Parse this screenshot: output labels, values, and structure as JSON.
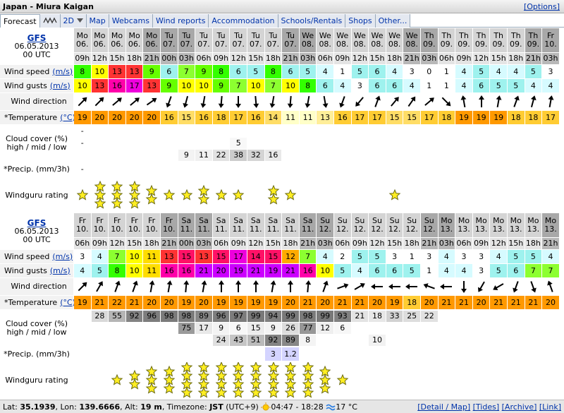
{
  "header": {
    "title": "Japan - Miura Kaigan",
    "options": "[Options]"
  },
  "tabs": [
    "Forecast",
    "2D",
    "Map",
    "Webcams",
    "Wind reports",
    "Accommodation",
    "Schools/Rentals",
    "Shops",
    "Other..."
  ],
  "labels": {
    "wind_speed": "Wind speed",
    "speed_unit": "(m/s)",
    "wind_gusts": "Wind gusts",
    "gust_unit": "(m/s)",
    "wind_direction": "Wind direction",
    "temperature": "*Temperature",
    "temp_unit": "(°C)",
    "cloud_cover": "Cloud cover (%)",
    "cloud_levels": "high / mid / low",
    "precip": "*Precip. (mm/3h)",
    "rating": "Windguru rating"
  },
  "forecasts": [
    {
      "model": "GFS",
      "run_date": "06.05.2013",
      "run_time": "00 UTC",
      "days": [
        "Mo",
        "Mo",
        "Mo",
        "Mo",
        "Mo",
        "Tu",
        "Tu",
        "Tu",
        "Tu",
        "Tu",
        "Tu",
        "Tu",
        "Tu",
        "We",
        "We",
        "We",
        "We",
        "We",
        "We",
        "We",
        "Th",
        "Th",
        "Th",
        "Th",
        "Th",
        "Th",
        "Th",
        "Fr"
      ],
      "dates": [
        "06.",
        "06.",
        "06.",
        "06.",
        "06.",
        "07.",
        "07.",
        "07.",
        "07.",
        "07.",
        "07.",
        "07.",
        "07.",
        "08.",
        "08.",
        "08.",
        "08.",
        "08.",
        "08.",
        "08.",
        "09.",
        "09.",
        "09.",
        "09.",
        "09.",
        "09.",
        "09.",
        "10."
      ],
      "hours": [
        "09h",
        "12h",
        "15h",
        "18h",
        "21h",
        "00h",
        "03h",
        "06h",
        "09h",
        "12h",
        "15h",
        "18h",
        "21h",
        "03h",
        "06h",
        "09h",
        "12h",
        "15h",
        "18h",
        "21h",
        "03h",
        "06h",
        "09h",
        "12h",
        "15h",
        "18h",
        "21h",
        "03h"
      ],
      "wind_speed": [
        8,
        10,
        13,
        13,
        9,
        6,
        7,
        9,
        8,
        6,
        5,
        8,
        6,
        5,
        4,
        1,
        5,
        6,
        4,
        3,
        0,
        1,
        4,
        5,
        4,
        4,
        5,
        3
      ],
      "wind_gusts": [
        10,
        13,
        16,
        17,
        13,
        9,
        10,
        10,
        9,
        7,
        10,
        7,
        10,
        8,
        6,
        4,
        3,
        6,
        6,
        4,
        1,
        1,
        4,
        6,
        5,
        5,
        4,
        4
      ],
      "wind_direction": [
        225,
        225,
        230,
        230,
        235,
        20,
        15,
        10,
        5,
        0,
        355,
        10,
        5,
        10,
        350,
        20,
        40,
        200,
        220,
        215,
        230,
        315,
        170,
        180,
        190,
        200,
        195,
        190
      ],
      "temperature": [
        19,
        20,
        20,
        20,
        20,
        16,
        15,
        16,
        18,
        17,
        16,
        14,
        11,
        11,
        13,
        16,
        17,
        17,
        15,
        15,
        17,
        18,
        19,
        19,
        19,
        18,
        18,
        17
      ],
      "cloud_high": [
        "-",
        null,
        null,
        null,
        null,
        null,
        null,
        null,
        null,
        null,
        null,
        null,
        null,
        null,
        null,
        null,
        null,
        null,
        null,
        null,
        null,
        null,
        null,
        null,
        null,
        null,
        null,
        null
      ],
      "cloud_mid": [
        "-",
        null,
        null,
        null,
        null,
        null,
        null,
        null,
        null,
        5,
        null,
        null,
        null,
        null,
        null,
        null,
        null,
        null,
        null,
        null,
        null,
        null,
        null,
        null,
        null,
        null,
        null,
        null
      ],
      "cloud_low": [
        null,
        null,
        null,
        null,
        null,
        null,
        9,
        11,
        22,
        38,
        32,
        16,
        null,
        null,
        null,
        null,
        null,
        null,
        null,
        null,
        null,
        null,
        null,
        null,
        null,
        null,
        null,
        null
      ],
      "precip": [
        "-",
        null,
        null,
        null,
        null,
        null,
        null,
        null,
        null,
        null,
        null,
        null,
        null,
        null,
        null,
        null,
        null,
        null,
        null,
        null,
        null,
        null,
        null,
        null,
        null,
        null,
        null,
        null
      ],
      "rating": [
        1,
        3,
        3,
        3,
        2,
        1,
        1,
        2,
        1,
        1,
        0,
        2,
        1,
        0,
        0,
        0,
        0,
        0,
        1,
        0,
        0,
        0,
        0,
        0,
        0,
        0,
        0,
        0
      ]
    },
    {
      "model": "GFS",
      "run_date": "06.05.2013",
      "run_time": "00 UTC",
      "days": [
        "Fr",
        "Fr",
        "Fr",
        "Fr",
        "Fr",
        "Fr",
        "Sa",
        "Sa",
        "Sa",
        "Sa",
        "Sa",
        "Sa",
        "Sa",
        "Sa",
        "Su",
        "Su",
        "Su",
        "Su",
        "Su",
        "Su",
        "Su",
        "Mo",
        "Mo",
        "Mo",
        "Mo",
        "Mo",
        "Mo",
        "Mo"
      ],
      "dates": [
        "10.",
        "10.",
        "10.",
        "10.",
        "10.",
        "10.",
        "11.",
        "11.",
        "11.",
        "11.",
        "11.",
        "11.",
        "11.",
        "11.",
        "12.",
        "12.",
        "12.",
        "12.",
        "12.",
        "12.",
        "12.",
        "13.",
        "13.",
        "13.",
        "13.",
        "13.",
        "13.",
        "13."
      ],
      "hours": [
        "06h",
        "09h",
        "12h",
        "15h",
        "18h",
        "21h",
        "00h",
        "03h",
        "06h",
        "09h",
        "12h",
        "15h",
        "18h",
        "21h",
        "03h",
        "06h",
        "09h",
        "12h",
        "15h",
        "18h",
        "21h",
        "03h",
        "06h",
        "09h",
        "12h",
        "15h",
        "18h",
        "21h"
      ],
      "wind_speed": [
        3,
        4,
        7,
        10,
        11,
        13,
        15,
        13,
        15,
        17,
        14,
        15,
        12,
        7,
        4,
        2,
        5,
        5,
        3,
        1,
        3,
        4,
        3,
        3,
        4,
        5,
        5,
        4
      ],
      "wind_gusts": [
        4,
        5,
        8,
        10,
        11,
        16,
        16,
        21,
        20,
        19,
        21,
        19,
        21,
        16,
        10,
        5,
        4,
        6,
        6,
        5,
        1,
        4,
        4,
        3,
        5,
        6,
        7,
        7
      ],
      "wind_direction": [
        225,
        210,
        200,
        200,
        190,
        190,
        185,
        190,
        180,
        180,
        180,
        190,
        180,
        185,
        200,
        250,
        240,
        90,
        90,
        90,
        110,
        90,
        0,
        30,
        60,
        20,
        340,
        160
      ],
      "temperature": [
        19,
        21,
        22,
        21,
        20,
        20,
        19,
        20,
        19,
        19,
        19,
        19,
        20,
        21,
        20,
        21,
        21,
        20,
        19,
        18,
        20,
        21,
        21,
        20,
        21,
        21,
        21,
        20
      ],
      "cloud_high": [
        null,
        28,
        55,
        92,
        96,
        98,
        98,
        89,
        96,
        97,
        99,
        94,
        99,
        98,
        99,
        93,
        21,
        18,
        33,
        25,
        22,
        null,
        null,
        null,
        null,
        null,
        null,
        null
      ],
      "cloud_mid": [
        null,
        null,
        null,
        null,
        null,
        null,
        75,
        17,
        9,
        6,
        15,
        9,
        26,
        77,
        12,
        6,
        null,
        null,
        null,
        null,
        null,
        null,
        null,
        null,
        null,
        null,
        null,
        null
      ],
      "cloud_low": [
        null,
        null,
        null,
        null,
        null,
        null,
        null,
        null,
        24,
        43,
        51,
        92,
        89,
        8,
        null,
        null,
        null,
        10,
        null,
        null,
        null,
        null,
        null,
        null,
        null,
        null,
        null,
        null
      ],
      "precip": [
        null,
        null,
        null,
        null,
        null,
        null,
        null,
        null,
        null,
        null,
        null,
        3,
        1.2,
        null,
        null,
        null,
        null,
        null,
        null,
        null,
        null,
        null,
        null,
        null,
        null,
        null,
        null,
        null
      ],
      "rating": [
        0,
        0,
        1,
        2,
        3,
        3,
        4,
        4,
        4,
        4,
        4,
        4,
        4,
        4,
        3,
        1,
        0,
        0,
        0,
        0,
        0,
        0,
        0,
        0,
        0,
        0,
        0,
        0
      ]
    }
  ],
  "footer": {
    "lat_label": "Lat:",
    "lat": "35.1939",
    "lon_label": ", Lon:",
    "lon": "139.6666",
    "alt_label": ", Alt:",
    "alt": "19 m",
    "tz_label": ", Timezone:",
    "tz": "JST",
    "tz_offset": "(UTC+9)",
    "sun": "04:47 - 18:28",
    "water_temp": "17 °C",
    "links": [
      "[Detail / Map]",
      "[Tides]",
      "[Archive]",
      "[Link]"
    ]
  }
}
